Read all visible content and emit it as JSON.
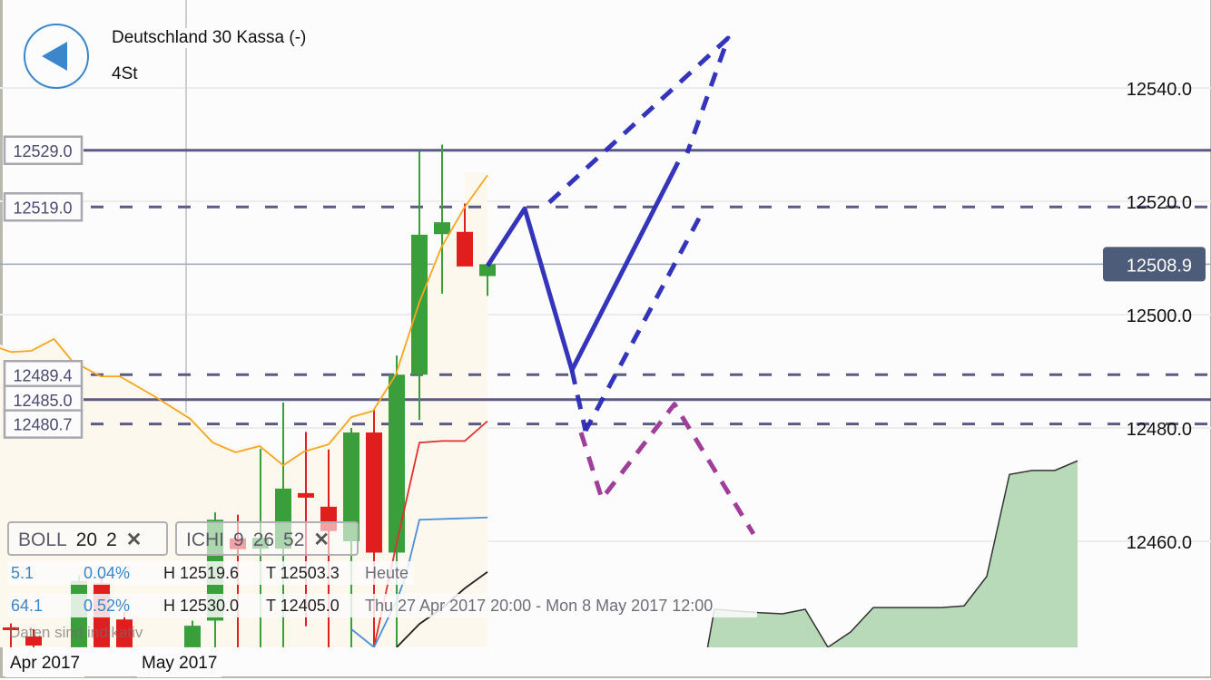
{
  "header": {
    "title": "Deutschland 30 Kassa (-)",
    "timeframe": "4St",
    "back_icon": "left-triangle-circle-icon"
  },
  "colors": {
    "up": "#3a9e3a",
    "down": "#e01e1e",
    "accent": "#3c87cc",
    "level_line": "#5a5a85",
    "current_badge": "#4d5c78",
    "drawing_blue": "#2a2ab8",
    "drawing_purple": "#9a3595",
    "cloud": "#b9dab8",
    "bollinger_mid": "#f5a623",
    "tenkan": "#e03030",
    "kijun": "#4a90d9",
    "chikou": "#222222"
  },
  "indicators": [
    {
      "name": "BOLL",
      "params": [
        "20",
        "2"
      ],
      "remove_icon": "close-x-icon"
    },
    {
      "name": "ICHI",
      "params": [
        "9",
        "26",
        "52"
      ],
      "remove_icon": "close-x-icon"
    }
  ],
  "stats": [
    {
      "change": "5.1",
      "change_pct": "0.04%",
      "high": "H 12519.6",
      "low": "T 12503.3",
      "period": "Heute"
    },
    {
      "change": "64.1",
      "change_pct": "0.52%",
      "high": "H 12530.0",
      "low": "T 12405.0",
      "period": "Thu 27 Apr 2017 20:00 - Mon 8 May 2017 12:00"
    }
  ],
  "disclaimer": "Daten sind indikativ",
  "chart_data": {
    "type": "candlestick",
    "ylim": [
      12441.3,
      12555.5
    ],
    "y_ticks": [
      "12540.0",
      "12520.0",
      "12500.0",
      "12480.0",
      "12460.0"
    ],
    "x_ticks": [
      "Apr 2017",
      "May 2017"
    ],
    "grid": true,
    "current_price": "12508.9",
    "levels": [
      {
        "label": "12529.0",
        "value": 12529.0,
        "style": "solid"
      },
      {
        "label": "12519.0",
        "value": 12519.0,
        "style": "dashed"
      },
      {
        "label": "12489.4",
        "value": 12489.4,
        "style": "dashed"
      },
      {
        "label": "12485.0",
        "value": 12485.0,
        "style": "solid"
      },
      {
        "label": "12480.7",
        "value": 12480.7,
        "style": "dashed"
      }
    ],
    "candles": [
      {
        "i": 0,
        "o": 12444.8,
        "h": 12445.5,
        "l": 12441.3,
        "c": 12444.4
      },
      {
        "i": 1,
        "o": 12443.2,
        "h": 12444.5,
        "l": 12441.3,
        "c": 12441.6
      },
      {
        "i": 3,
        "o": 12441.3,
        "h": 12454.0,
        "l": 12441.3,
        "c": 12453.0
      },
      {
        "i": 4,
        "o": 12452.6,
        "h": 12454.0,
        "l": 12441.3,
        "c": 12441.3
      },
      {
        "i": 5,
        "o": 12446.2,
        "h": 12447.5,
        "l": 12441.3,
        "c": 12441.3
      },
      {
        "i": 8,
        "o": 12441.3,
        "h": 12446.0,
        "l": 12441.3,
        "c": 12445.1
      },
      {
        "i": 9,
        "o": 12446.0,
        "h": 12465.1,
        "l": 12441.3,
        "c": 12463.8
      },
      {
        "i": 10,
        "o": 12460.5,
        "h": 12464.7,
        "l": 12441.3,
        "c": 12458.6
      },
      {
        "i": 11,
        "o": 12458.7,
        "h": 12476.3,
        "l": 12441.3,
        "c": 12460.6
      },
      {
        "i": 12,
        "o": 12458.7,
        "h": 12484.5,
        "l": 12441.3,
        "c": 12469.3
      },
      {
        "i": 13,
        "o": 12468.5,
        "h": 12479.3,
        "l": 12445.0,
        "c": 12467.7
      },
      {
        "i": 14,
        "o": 12466.1,
        "h": 12476.2,
        "l": 12441.3,
        "c": 12461.8
      },
      {
        "i": 15,
        "o": 12460.0,
        "h": 12480.0,
        "l": 12441.3,
        "c": 12479.2
      },
      {
        "i": 16,
        "o": 12479.2,
        "h": 12483.2,
        "l": 12441.3,
        "c": 12458.0
      },
      {
        "i": 17,
        "o": 12458.0,
        "h": 12492.8,
        "l": 12441.3,
        "c": 12489.4
      },
      {
        "i": 18,
        "o": 12489.4,
        "h": 12528.8,
        "l": 12481.4,
        "c": 12514.1
      },
      {
        "i": 19,
        "o": 12514.2,
        "h": 12530.0,
        "l": 12503.7,
        "c": 12516.3
      },
      {
        "i": 20,
        "o": 12514.6,
        "h": 12519.6,
        "l": 12508.5,
        "c": 12508.5
      },
      {
        "i": 21,
        "o": 12506.8,
        "h": 12509.0,
        "l": 12503.3,
        "c": 12508.9
      }
    ],
    "overlays": [
      {
        "id": "bollinger-middle",
        "color_key": "bollinger_mid",
        "points": [
          [
            -0.5,
            12494.1
          ],
          [
            0,
            12493.4
          ],
          [
            0.9,
            12493.6
          ],
          [
            1.9,
            12495.7
          ],
          [
            2.7,
            12491.8
          ],
          [
            3.96,
            12489.1
          ],
          [
            4.8,
            12489.1
          ],
          [
            6.4,
            12485.4
          ],
          [
            7.9,
            12481.6
          ],
          [
            8.9,
            12477.4
          ],
          [
            9.9,
            12475.7
          ],
          [
            10.96,
            12476.8
          ],
          [
            12,
            12473.4
          ],
          [
            12.9,
            12475.8
          ],
          [
            14,
            12477.1
          ],
          [
            15,
            12481.9
          ],
          [
            15.96,
            12483.0
          ],
          [
            16.96,
            12489.4
          ],
          [
            18,
            12502.2
          ],
          [
            18.96,
            12511.8
          ],
          [
            20,
            12519.0
          ],
          [
            21,
            12524.6
          ]
        ]
      },
      {
        "id": "ichimoku-tenkan",
        "color_key": "tenkan",
        "points": [
          [
            16,
            12441.3
          ],
          [
            17,
            12459.7
          ],
          [
            18,
            12477.4
          ],
          [
            19,
            12477.7
          ],
          [
            20,
            12477.7
          ],
          [
            21,
            12481.2
          ]
        ]
      },
      {
        "id": "ichimoku-kijun",
        "color_key": "kijun",
        "points": [
          [
            15,
            12444.5
          ],
          [
            16,
            12441.3
          ],
          [
            17,
            12449.6
          ],
          [
            17.4,
            12453.9
          ],
          [
            18,
            12463.8
          ],
          [
            21,
            12464.2
          ]
        ]
      },
      {
        "id": "ichimoku-chikou",
        "color_key": "chikou",
        "points": [
          [
            17,
            12441.3
          ],
          [
            18,
            12445.4
          ],
          [
            19,
            12448.2
          ],
          [
            20,
            12451.7
          ],
          [
            21,
            12454.6
          ]
        ]
      }
    ],
    "cloud": [
      [
        30.7,
        12441.3
      ],
      [
        31,
        12448.0
      ],
      [
        33,
        12447.4
      ],
      [
        34,
        12447.2
      ],
      [
        35,
        12448.0
      ],
      [
        36,
        12441.3
      ],
      [
        37,
        12444.0
      ],
      [
        38,
        12448.3
      ],
      [
        41,
        12448.3
      ],
      [
        42,
        12448.6
      ],
      [
        43,
        12453.8
      ],
      [
        44,
        12471.8
      ],
      [
        45,
        12472.5
      ],
      [
        46,
        12472.5
      ],
      [
        47,
        12474.2
      ]
    ],
    "drawings": [
      {
        "id": "projection-zigzag",
        "color_key": "drawing_blue",
        "style": "solid",
        "points": [
          [
            21,
            12508.6
          ],
          [
            22.64,
            12518.7
          ],
          [
            24.72,
            12490.2
          ],
          [
            29.4,
            12526.9
          ]
        ]
      },
      {
        "id": "projection-upper-dashed",
        "color_key": "drawing_blue",
        "style": "dashed",
        "points": [
          [
            23.72,
            12519.8
          ],
          [
            31.6,
            12548.8
          ],
          [
            29.8,
            12528.5
          ]
        ]
      },
      {
        "id": "projection-lower-dashed",
        "color_key": "drawing_blue",
        "style": "dashed",
        "points": [
          [
            30.32,
            12517.0
          ],
          [
            25.32,
            12479.5
          ]
        ]
      },
      {
        "id": "projection-down-extension",
        "color_key": "drawing_blue",
        "style": "dashed",
        "points": [
          [
            24.72,
            12490.2
          ],
          [
            25.32,
            12479.5
          ]
        ]
      },
      {
        "id": "alternative-path",
        "color_key": "drawing_purple",
        "style": "dashed",
        "points": [
          [
            25.12,
            12479.2
          ],
          [
            26.04,
            12467.5
          ],
          [
            29.24,
            12484.2
          ],
          [
            32.72,
            12461.3
          ]
        ]
      }
    ]
  }
}
